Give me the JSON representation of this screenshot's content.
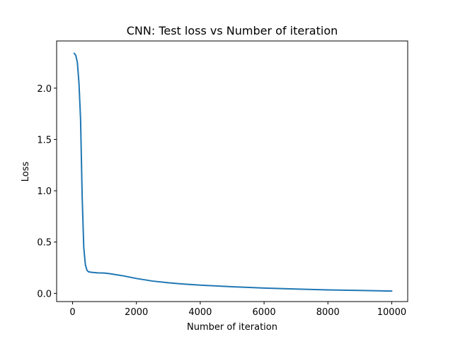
{
  "chart_data": {
    "type": "line",
    "title": "CNN: Test loss vs Number of iteration",
    "xlabel": "Number of iteration",
    "ylabel": "Loss",
    "xlim": [
      -500,
      10500
    ],
    "ylim": [
      -0.08,
      2.46
    ],
    "xticks": [
      {
        "value": 0,
        "label": "0"
      },
      {
        "value": 2000,
        "label": "2000"
      },
      {
        "value": 4000,
        "label": "4000"
      },
      {
        "value": 6000,
        "label": "6000"
      },
      {
        "value": 8000,
        "label": "8000"
      },
      {
        "value": 10000,
        "label": "10000"
      }
    ],
    "yticks": [
      {
        "value": 0.0,
        "label": "0.0"
      },
      {
        "value": 0.5,
        "label": "0.5"
      },
      {
        "value": 1.0,
        "label": "1.0"
      },
      {
        "value": 1.5,
        "label": "1.5"
      },
      {
        "value": 2.0,
        "label": "2.0"
      }
    ],
    "grid": false,
    "series": [
      {
        "color": "#1f77b4",
        "x": [
          50,
          100,
          150,
          200,
          250,
          300,
          350,
          400,
          450,
          500,
          600,
          800,
          1000,
          1200,
          1400,
          1600,
          2000,
          2500,
          3000,
          3500,
          4000,
          5000,
          6000,
          7000,
          8000,
          9000,
          10000
        ],
        "y": [
          2.34,
          2.32,
          2.25,
          2.05,
          1.7,
          0.95,
          0.45,
          0.28,
          0.225,
          0.21,
          0.205,
          0.2,
          0.198,
          0.19,
          0.18,
          0.17,
          0.145,
          0.12,
          0.103,
          0.09,
          0.08,
          0.065,
          0.052,
          0.042,
          0.034,
          0.028,
          0.022
        ]
      }
    ]
  }
}
